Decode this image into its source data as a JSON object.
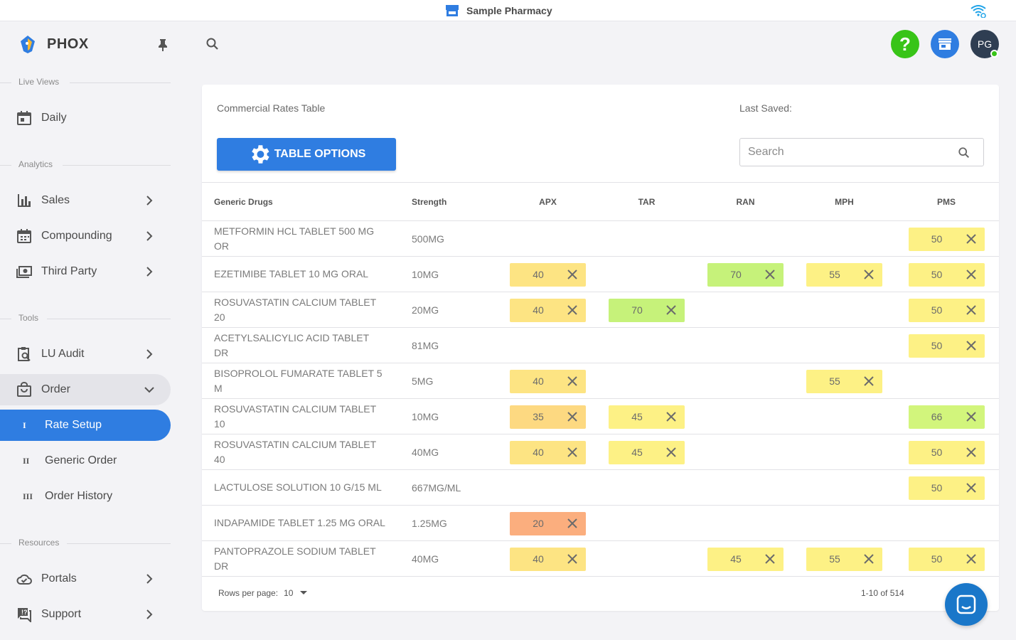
{
  "topbar": {
    "pharmacy_name": "Sample Pharmacy",
    "store_icon": "storefront-icon",
    "wifi_icon": "wifi-icon"
  },
  "brand": {
    "name": "PHOX",
    "logo_icon": "phox-logo-icon",
    "pin_icon": "pin-icon"
  },
  "sidebar": {
    "sections": {
      "live_views": "Live Views",
      "analytics": "Analytics",
      "tools": "Tools",
      "resources": "Resources"
    },
    "items": {
      "daily": "Daily",
      "sales": "Sales",
      "compounding": "Compounding",
      "third_party": "Third Party",
      "lu_audit": "LU Audit",
      "order": "Order",
      "rate_setup": "Rate Setup",
      "rate_setup_num": "I",
      "generic_order": "Generic Order",
      "generic_order_num": "II",
      "order_history": "Order History",
      "order_history_num": "III",
      "portals": "Portals",
      "support": "Support"
    }
  },
  "header": {
    "help_label": "?",
    "avatar_initials": "PG"
  },
  "card": {
    "title": "Commercial Rates Table",
    "last_saved_label": "Last Saved:",
    "table_options_label": "TABLE OPTIONS",
    "search_placeholder": "Search"
  },
  "table": {
    "headers": {
      "drug": "Generic Drugs",
      "strength": "Strength",
      "apx": "APX",
      "tar": "TAR",
      "ran": "RAN",
      "mph": "MPH",
      "pms": "PMS"
    },
    "rows": [
      {
        "drug": "METFORMIN HCL TABLET 500 MG OR",
        "strength": "500MG",
        "apx": "",
        "tar": "",
        "ran": "",
        "mph": "",
        "pms": "50"
      },
      {
        "drug": "EZETIMIBE TABLET 10 MG ORAL",
        "strength": "10MG",
        "apx": "40",
        "tar": "",
        "ran": "70",
        "mph": "55",
        "pms": "50"
      },
      {
        "drug": "ROSUVASTATIN CALCIUM TABLET 20",
        "strength": "20MG",
        "apx": "40",
        "tar": "70",
        "ran": "",
        "mph": "",
        "pms": "50"
      },
      {
        "drug": "ACETYLSALICYLIC ACID TABLET DR",
        "strength": "81MG",
        "apx": "",
        "tar": "",
        "ran": "",
        "mph": "",
        "pms": "50"
      },
      {
        "drug": "BISOPROLOL FUMARATE TABLET 5 M",
        "strength": "5MG",
        "apx": "40",
        "tar": "",
        "ran": "",
        "mph": "55",
        "pms": ""
      },
      {
        "drug": "ROSUVASTATIN CALCIUM TABLET 10",
        "strength": "10MG",
        "apx": "35",
        "tar": "45",
        "ran": "",
        "mph": "",
        "pms": "66"
      },
      {
        "drug": "ROSUVASTATIN CALCIUM TABLET 40",
        "strength": "40MG",
        "apx": "40",
        "tar": "45",
        "ran": "",
        "mph": "",
        "pms": "50"
      },
      {
        "drug": "LACTULOSE SOLUTION 10 G/15 ML",
        "strength": "667MG/ML",
        "apx": "",
        "tar": "",
        "ran": "",
        "mph": "",
        "pms": "50"
      },
      {
        "drug": "INDAPAMIDE TABLET 1.25 MG ORAL",
        "strength": "1.25MG",
        "apx": "20",
        "tar": "",
        "ran": "",
        "mph": "",
        "pms": ""
      },
      {
        "drug": "PANTOPRAZOLE SODIUM TABLET DR",
        "strength": "40MG",
        "apx": "40",
        "tar": "",
        "ran": "45",
        "mph": "55",
        "pms": "50"
      }
    ],
    "rate_colors": {
      "20": "#fbae7e",
      "35": "#fdd981",
      "40": "#fde483",
      "45": "#fdf185",
      "50": "#fdf185",
      "55": "#fdf185",
      "66": "#d2f57c",
      "70": "#c6f27a"
    }
  },
  "pagination": {
    "rows_per_page_label": "Rows per page:",
    "rows_per_page_value": "10",
    "range": "1-10 of 514"
  },
  "colors": {
    "accent": "#2f7de1",
    "help": "#38c418",
    "avatar": "#2f3e52",
    "chat": "#1a77c9"
  }
}
